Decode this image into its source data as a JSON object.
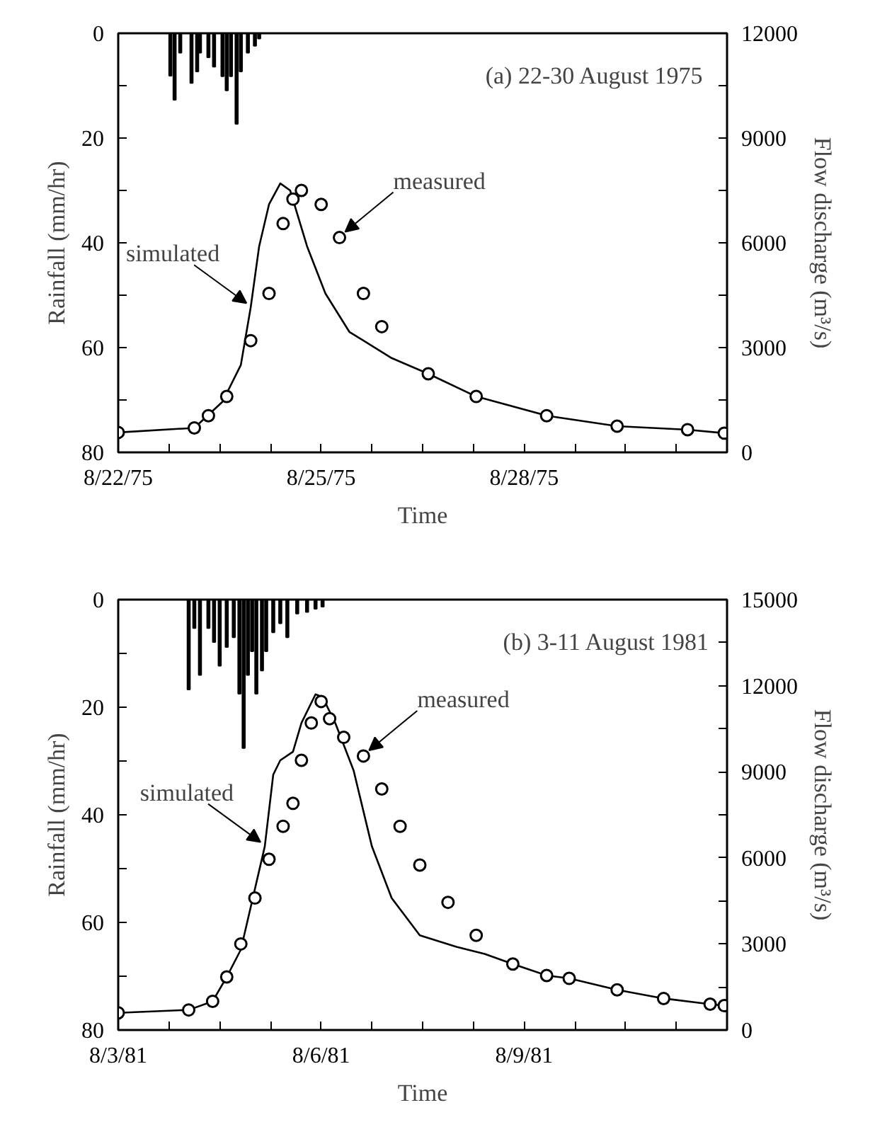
{
  "chart_data": [
    {
      "type": "line",
      "title": "(a)  22-30 August 1975",
      "xlabel": "Time",
      "ylabel": "Rainfall (mm/hr)",
      "y2label": "Flow discharge (m³/s)",
      "grid": false,
      "xlim": [
        "1975-08-22T00:00",
        "1975-08-31T00:00"
      ],
      "xticks": [
        {
          "value": "1975-08-22T00:00",
          "label": "8/22/75"
        },
        {
          "value": "1975-08-22T18:00",
          "label": null
        },
        {
          "value": "1975-08-23T12:00",
          "label": null
        },
        {
          "value": "1975-08-24T06:00",
          "label": null
        },
        {
          "value": "1975-08-25T00:00",
          "label": "8/25/75"
        },
        {
          "value": "1975-08-25T18:00",
          "label": null
        },
        {
          "value": "1975-08-26T12:00",
          "label": null
        },
        {
          "value": "1975-08-27T06:00",
          "label": null
        },
        {
          "value": "1975-08-28T00:00",
          "label": "8/28/75"
        },
        {
          "value": "1975-08-28T18:00",
          "label": null
        },
        {
          "value": "1975-08-29T12:00",
          "label": null
        },
        {
          "value": "1975-08-30T06:00",
          "label": null
        },
        {
          "value": "1975-08-31T00:00",
          "label": null
        }
      ],
      "ylim": [
        80,
        0
      ],
      "yticks": [
        0,
        {
          "value": 10,
          "label": null
        },
        20,
        {
          "value": 30,
          "label": null
        },
        40,
        {
          "value": 50,
          "label": null
        },
        60,
        {
          "value": 70,
          "label": null
        },
        80
      ],
      "y2lim": [
        0,
        12000
      ],
      "y2ticks": [
        0,
        {
          "value": 1500,
          "label": null
        },
        3000,
        {
          "value": 4500,
          "label": null
        },
        6000,
        {
          "value": 7500,
          "label": null
        },
        9000,
        {
          "value": 10500,
          "label": null
        },
        12000
      ],
      "series": [
        {
          "type": "bar",
          "color": "#000000",
          "x": [
            "1975-08-22T18:30",
            "1975-08-22T20:00",
            "1975-08-22T22:00",
            "1975-08-23T02:00",
            "1975-08-23T04:00",
            "1975-08-23T05:00",
            "1975-08-23T08:00",
            "1975-08-23T10:00",
            "1975-08-23T13:00",
            "1975-08-23T14:30",
            "1975-08-23T16:00",
            "1975-08-23T18:00",
            "1975-08-23T19:30",
            "1975-08-23T22:00",
            "1975-08-24T00:30",
            "1975-08-24T02:00"
          ],
          "values": [
            8.1,
            12.7,
            3.7,
            9.5,
            7.3,
            3.7,
            4.6,
            6.4,
            8.2,
            10.9,
            8.2,
            17.3,
            7.3,
            3.7,
            2.4,
            1.0
          ]
        },
        {
          "name": "simulated",
          "axis": "y2",
          "color": "#000000",
          "x": [
            "1975-08-22T00:00",
            "1975-08-23T03:00",
            "1975-08-23T13:00",
            "1975-08-23T19:30",
            "1975-08-23T23:00",
            "1975-08-24T02:00",
            "1975-08-24T05:30",
            "1975-08-24T09:30",
            "1975-08-24T13:00",
            "1975-08-24T19:00",
            "1975-08-25T01:30",
            "1975-08-25T10:00",
            "1975-08-26T01:00",
            "1975-08-26T14:00",
            "1975-08-27T07:00",
            "1975-08-28T08:00",
            "1975-08-29T09:00",
            "1975-08-30T10:00",
            "1975-08-30T23:00"
          ],
          "values": [
            570,
            700,
            1450,
            2500,
            4150,
            5900,
            7100,
            7700,
            7500,
            5900,
            4550,
            3450,
            2700,
            2250,
            1600,
            1050,
            750,
            650,
            550
          ]
        },
        {
          "type": "scatter",
          "name": "measured",
          "axis": "y2",
          "marker": "circle",
          "color": "#000000",
          "x": [
            "1975-08-22T00:00",
            "1975-08-23T03:00",
            "1975-08-23T08:00",
            "1975-08-23T14:30",
            "1975-08-23T23:00",
            "1975-08-24T05:30",
            "1975-08-24T10:30",
            "1975-08-24T14:00",
            "1975-08-24T17:00",
            "1975-08-25T00:00",
            "1975-08-25T06:30",
            "1975-08-25T15:00",
            "1975-08-25T21:30",
            "1975-08-26T14:00",
            "1975-08-27T07:00",
            "1975-08-28T08:00",
            "1975-08-29T09:00",
            "1975-08-30T10:00",
            "1975-08-30T23:00"
          ],
          "values": [
            570,
            700,
            1050,
            1600,
            3200,
            4550,
            6550,
            7250,
            7500,
            7100,
            6150,
            4550,
            3600,
            2250,
            1600,
            1050,
            750,
            650,
            550
          ]
        }
      ]
    },
    {
      "type": "line",
      "title": "(b) 3-11 August 1981",
      "xlabel": "Time",
      "ylabel": "Rainfall (mm/hr)",
      "y2label": "Flow discharge (m³/s)",
      "grid": false,
      "xlim": [
        "1981-08-03T00:00",
        "1981-08-12T00:00"
      ],
      "xticks": [
        {
          "value": "1981-08-03T00:00",
          "label": "8/3/81"
        },
        {
          "value": "1981-08-03T18:00",
          "label": null
        },
        {
          "value": "1981-08-04T12:00",
          "label": null
        },
        {
          "value": "1981-08-05T06:00",
          "label": null
        },
        {
          "value": "1981-08-06T00:00",
          "label": "8/6/81"
        },
        {
          "value": "1981-08-06T18:00",
          "label": null
        },
        {
          "value": "1981-08-07T12:00",
          "label": null
        },
        {
          "value": "1981-08-08T06:00",
          "label": null
        },
        {
          "value": "1981-08-09T00:00",
          "label": "8/9/81"
        },
        {
          "value": "1981-08-09T18:00",
          "label": null
        },
        {
          "value": "1981-08-10T12:00",
          "label": null
        },
        {
          "value": "1981-08-11T06:00",
          "label": null
        },
        {
          "value": "1981-08-12T00:00",
          "label": null
        }
      ],
      "ylim": [
        80,
        0
      ],
      "yticks": [
        0,
        {
          "value": 10,
          "label": null
        },
        20,
        {
          "value": 30,
          "label": null
        },
        40,
        {
          "value": 50,
          "label": null
        },
        60,
        {
          "value": 70,
          "label": null
        },
        80
      ],
      "y2lim": [
        0,
        15000
      ],
      "y2ticks": [
        0,
        {
          "value": 1500,
          "label": null
        },
        3000,
        {
          "value": 4500,
          "label": null
        },
        6000,
        {
          "value": 7500,
          "label": null
        },
        9000,
        {
          "value": 10500,
          "label": null
        },
        12000,
        {
          "value": 13500,
          "label": null
        },
        15000
      ],
      "series": [
        {
          "type": "bar",
          "color": "#000000",
          "x": [
            "1981-08-04T01:00",
            "1981-08-04T03:00",
            "1981-08-04T05:00",
            "1981-08-04T08:00",
            "1981-08-04T10:00",
            "1981-08-04T12:00",
            "1981-08-04T14:30",
            "1981-08-04T17:00",
            "1981-08-04T19:00",
            "1981-08-04T20:30",
            "1981-08-04T22:00",
            "1981-08-04T23:30",
            "1981-08-05T01:00",
            "1981-08-05T03:00",
            "1981-08-05T04:30",
            "1981-08-05T07:00",
            "1981-08-05T09:30",
            "1981-08-05T12:00",
            "1981-08-05T15:30",
            "1981-08-05T19:00",
            "1981-08-05T22:00",
            "1981-08-06T00:30"
          ],
          "values": [
            16.7,
            5.3,
            14.0,
            5.3,
            7.9,
            12.3,
            8.8,
            7.0,
            17.5,
            27.6,
            14.0,
            9.6,
            17.5,
            13.2,
            9.6,
            6.1,
            4.4,
            7.0,
            2.6,
            2.3,
            1.7,
            1.3
          ]
        },
        {
          "name": "simulated",
          "axis": "y2",
          "color": "#000000",
          "x": [
            "1981-08-03T00:00",
            "1981-08-04T01:00",
            "1981-08-04T09:30",
            "1981-08-04T14:30",
            "1981-08-04T19:30",
            "1981-08-05T04:00",
            "1981-08-05T07:00",
            "1981-08-05T09:30",
            "1981-08-05T14:00",
            "1981-08-05T17:00",
            "1981-08-05T22:00",
            "1981-08-06T00:30",
            "1981-08-06T05:00",
            "1981-08-06T11:30",
            "1981-08-06T18:00",
            "1981-08-07T01:00",
            "1981-08-07T11:00",
            "1981-08-08T00:00",
            "1981-08-08T10:00",
            "1981-08-08T20:00",
            "1981-08-09T08:00",
            "1981-08-09T16:00",
            "1981-08-10T09:00",
            "1981-08-11T01:30",
            "1981-08-11T18:00",
            "1981-08-11T23:00"
          ],
          "values": [
            600,
            700,
            1000,
            1850,
            2800,
            6400,
            8900,
            9400,
            9700,
            10700,
            11700,
            11600,
            10700,
            9050,
            6400,
            4600,
            3300,
            2900,
            2650,
            2300,
            1900,
            1800,
            1400,
            1100,
            900,
            850
          ]
        },
        {
          "type": "scatter",
          "name": "measured",
          "axis": "y2",
          "marker": "circle",
          "color": "#000000",
          "x": [
            "1981-08-03T00:00",
            "1981-08-04T01:00",
            "1981-08-04T09:30",
            "1981-08-04T14:30",
            "1981-08-04T19:30",
            "1981-08-05T00:30",
            "1981-08-05T05:30",
            "1981-08-05T10:30",
            "1981-08-05T14:00",
            "1981-08-05T17:00",
            "1981-08-05T20:30",
            "1981-08-06T00:00",
            "1981-08-06T03:00",
            "1981-08-06T08:00",
            "1981-08-06T15:00",
            "1981-08-06T21:30",
            "1981-08-07T04:00",
            "1981-08-07T11:00",
            "1981-08-07T21:00",
            "1981-08-08T07:00",
            "1981-08-08T20:00",
            "1981-08-09T08:00",
            "1981-08-09T16:00",
            "1981-08-10T09:00",
            "1981-08-11T01:30",
            "1981-08-11T18:00",
            "1981-08-11T23:00"
          ],
          "values": [
            600,
            700,
            1000,
            1850,
            3000,
            4600,
            5950,
            7100,
            7900,
            9400,
            10700,
            11450,
            10850,
            10200,
            9550,
            8400,
            7100,
            5750,
            4450,
            3300,
            2300,
            1900,
            1800,
            1400,
            1100,
            900,
            850
          ]
        }
      ]
    }
  ]
}
